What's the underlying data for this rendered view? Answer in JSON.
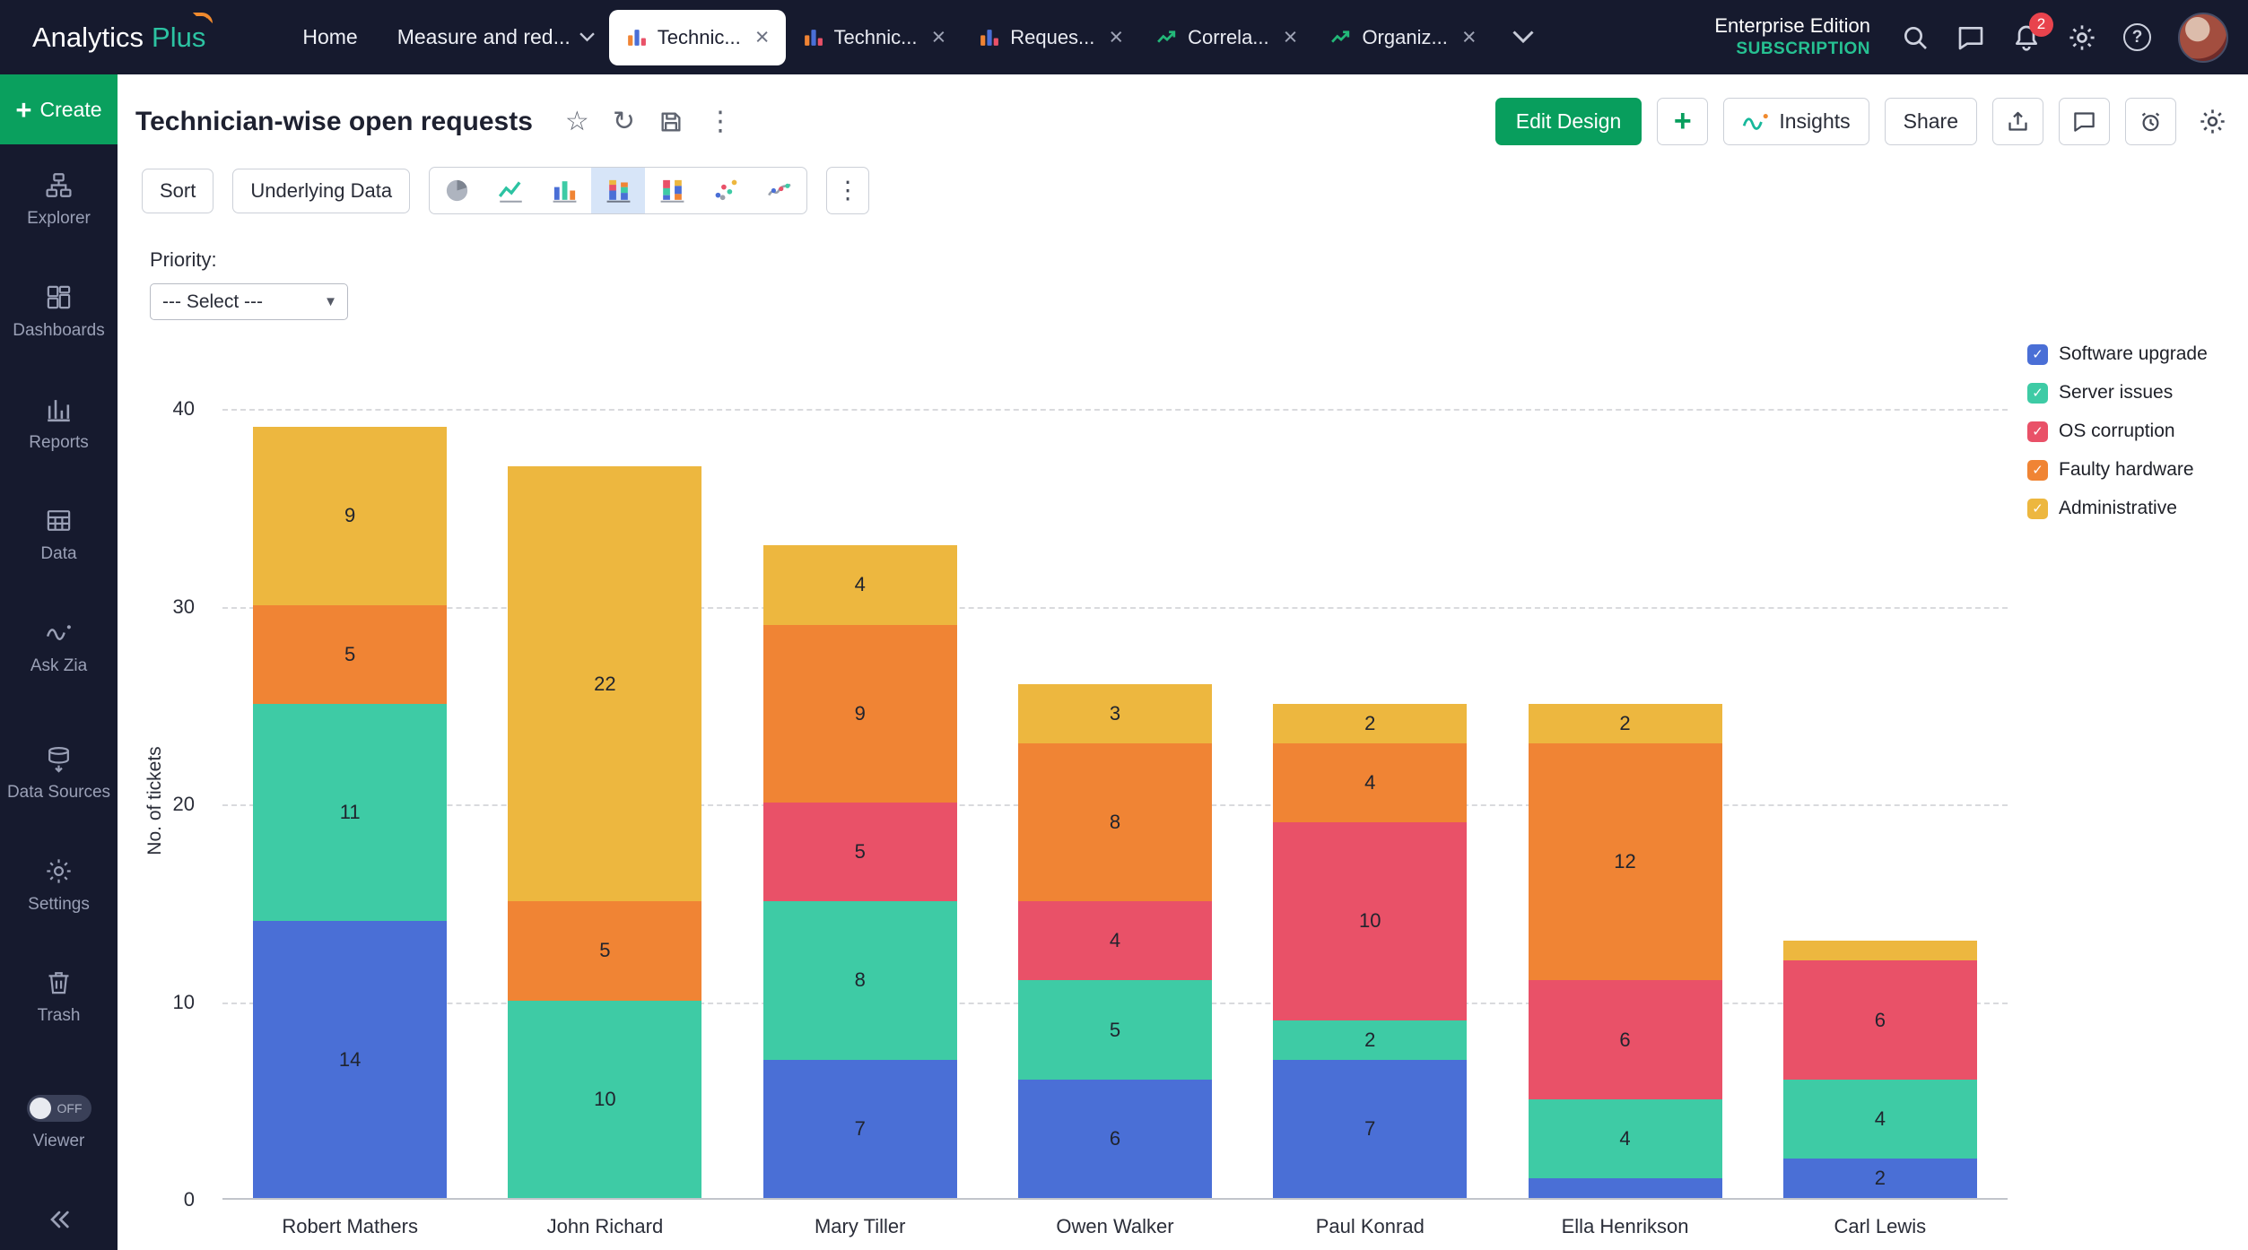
{
  "app": {
    "logo_analytics": "Analytics",
    "logo_plus": "Plus",
    "edition": "Enterprise Edition",
    "subscription": "SUBSCRIPTION"
  },
  "nav": {
    "home": "Home",
    "measure_menu": "Measure and red...",
    "tabs": [
      {
        "label": "Technic...",
        "icon": "bar",
        "active": true
      },
      {
        "label": "Technic...",
        "icon": "bar",
        "active": false
      },
      {
        "label": "Reques...",
        "icon": "bar",
        "active": false
      },
      {
        "label": "Correla...",
        "icon": "line",
        "active": false
      },
      {
        "label": "Organiz...",
        "icon": "line",
        "active": false
      }
    ],
    "notification_count": "2"
  },
  "sidebar": {
    "create_label": "Create",
    "items": [
      {
        "label": "Explorer",
        "icon": "explorer"
      },
      {
        "label": "Dashboards",
        "icon": "dashboards"
      },
      {
        "label": "Reports",
        "icon": "reports"
      },
      {
        "label": "Data",
        "icon": "data"
      },
      {
        "label": "Ask Zia",
        "icon": "zia"
      },
      {
        "label": "Data Sources",
        "icon": "data-sources"
      },
      {
        "label": "Settings",
        "icon": "gear"
      },
      {
        "label": "Trash",
        "icon": "trash"
      }
    ],
    "viewer_toggle": "OFF",
    "viewer_label": "Viewer"
  },
  "header": {
    "title": "Technician-wise open requests",
    "edit_design": "Edit Design",
    "insights": "Insights",
    "share": "Share"
  },
  "toolbar": {
    "sort": "Sort",
    "underlying_data": "Underlying Data",
    "chart_types": [
      {
        "icon": "pie-chart",
        "selected": false
      },
      {
        "icon": "line-chart",
        "selected": false
      },
      {
        "icon": "bar-chart",
        "selected": false
      },
      {
        "icon": "stacked-bar-chart",
        "selected": true
      },
      {
        "icon": "stacked-bar-100-chart",
        "selected": false
      },
      {
        "icon": "scatter-chart",
        "selected": false
      },
      {
        "icon": "combo-chart",
        "selected": false
      }
    ]
  },
  "filter": {
    "label": "Priority:",
    "value": "--- Select ---"
  },
  "icons": {
    "plus_glyph": "+",
    "close_glyph": "×",
    "check_glyph": "✓",
    "star_glyph": "☆",
    "refresh_glyph": "↻",
    "more_vertical_glyph": "⋮",
    "dropdown_arrow_glyph": "▼",
    "help_glyph": "?"
  },
  "chart_data": {
    "type": "bar",
    "stacked": true,
    "title": "Technician-wise open requests",
    "ylabel": "No. of tickets",
    "ylim": [
      0,
      40
    ],
    "yticks": [
      0,
      10,
      20,
      30,
      40
    ],
    "grid": "horizontal-dashed",
    "legend_position": "right",
    "label_min_value": 2,
    "categories": [
      "Robert Mathers",
      "John Richard",
      "Mary Tiller",
      "Owen Walker",
      "Paul Konrad",
      "Ella Henrikson",
      "Carl Lewis"
    ],
    "series": [
      {
        "name": "Software upgrade",
        "color": "#4a6fd6",
        "values": [
          14,
          0,
          7,
          6,
          7,
          1,
          2
        ]
      },
      {
        "name": "Server issues",
        "color": "#3ecba5",
        "values": [
          11,
          10,
          8,
          5,
          2,
          4,
          4
        ]
      },
      {
        "name": "OS corruption",
        "color": "#e95168",
        "values": [
          0,
          0,
          5,
          4,
          10,
          6,
          6
        ]
      },
      {
        "name": "Faulty hardware",
        "color": "#f08434",
        "values": [
          5,
          5,
          9,
          8,
          4,
          12,
          0
        ]
      },
      {
        "name": "Administrative",
        "color": "#edb73f",
        "values": [
          9,
          22,
          4,
          3,
          2,
          2,
          1
        ]
      }
    ]
  }
}
